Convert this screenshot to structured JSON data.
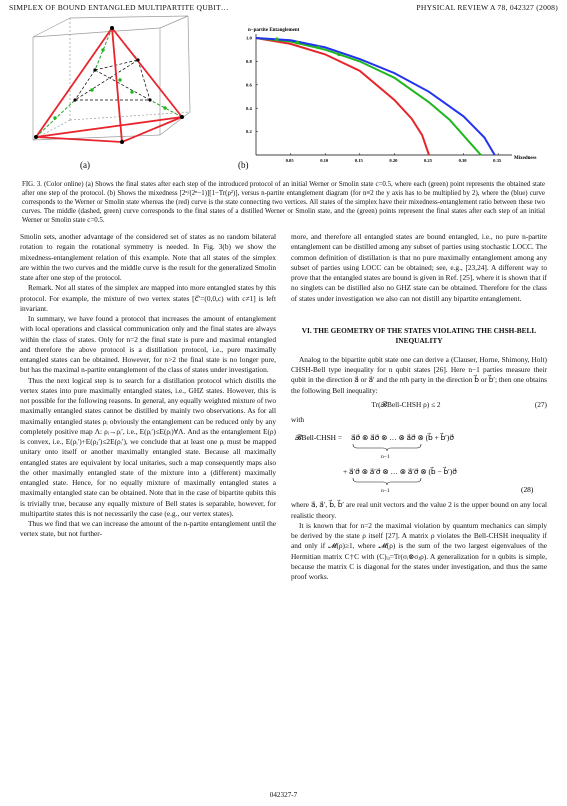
{
  "header": {
    "left": "SIMPLEX OF BOUND ENTANGLED MULTIPARTITE QUBIT…",
    "right": "PHYSICAL REVIEW A 78, 042327 (2008)"
  },
  "figure": {
    "panel_a_label": "(a)",
    "panel_b_label": "(b)",
    "ylabel": "n−partite Entanglement",
    "xlabel": "Mixedness",
    "xticks": [
      "0.05",
      "0.10",
      "0.15",
      "0.20",
      "0.25",
      "0.30",
      "0.35"
    ],
    "yticks": [
      "1.0",
      "0.8",
      "0.6",
      "0.4",
      "0.2"
    ],
    "colors": {
      "red": "#e8242c",
      "green": "#1fb61f",
      "blue": "#2233ee",
      "black": "#000000"
    }
  },
  "chart_data": {
    "type": "line",
    "xlabel": "Mixedness",
    "ylabel": "n−partite Entanglement",
    "xlim": [
      0,
      0.37
    ],
    "ylim": [
      0,
      1.0
    ],
    "series": [
      {
        "color": "red",
        "x": [
          0,
          0.05,
          0.1,
          0.15,
          0.2,
          0.225,
          0.24,
          0.25
        ],
        "y": [
          1.0,
          0.95,
          0.86,
          0.72,
          0.47,
          0.31,
          0.17,
          0.0
        ]
      },
      {
        "color": "green",
        "x": [
          0,
          0.05,
          0.1,
          0.15,
          0.2,
          0.25,
          0.28,
          0.31,
          0.325
        ],
        "y": [
          1.0,
          0.97,
          0.9,
          0.8,
          0.66,
          0.45,
          0.3,
          0.1,
          0.0
        ]
      },
      {
        "color": "blue",
        "x": [
          0,
          0.05,
          0.1,
          0.15,
          0.2,
          0.25,
          0.3,
          0.33,
          0.345
        ],
        "y": [
          1.0,
          0.98,
          0.92,
          0.82,
          0.7,
          0.54,
          0.33,
          0.15,
          0.0
        ]
      }
    ],
    "green_points": {
      "x": [
        0.03,
        0.06,
        0.09,
        0.12
      ],
      "y": [
        0.99,
        0.96,
        0.92,
        0.86
      ]
    }
  },
  "caption": {
    "text": "FIG. 3. (Color online) (a) Shows the final states after each step of the introduced protocol of an initial Werner or Smolin state c=0.5, where each (green) point represents the obtained state after one step of the protocol. (b) Shows the mixedness [2ⁿ/(2ⁿ−1)][1−Tr(ρ²)], versus n-partite entanglement diagram (for n≡2 the y axis has to be multiplied by 2), where the (blue) curve corresponds to the Werner or Smolin state whereas the (red) curve is the state connecting two vertices. All states of the simplex have their mixedness-entanglement ratio between these two curves. The middle (dashed, green) curve corresponds to the final states of a distilled Werner or Smolin state, and the (green) points represent the final states after each step of an initial Werner or Smolin state c=0.5."
  },
  "left_column": {
    "p1": "Smolin sets, another advantage of the considered set of states as no random bilateral rotation to regain the rotational symmetry is needed. In Fig. 3(b) we show the mixedness-entanglement relation of this example. Note that all states of the simplex are within the two curves and the middle curve is the result for the generalized Smolin state after one step of the protocol.",
    "p2": "Remark. Not all states of the simplex are mapped into more entangled states by this protocol. For example, the mixture of two vertex states [c⃗′=(0,0,c) with c≠1] is left invariant.",
    "p3": "In summary, we have found a protocol that increases the amount of entanglement with local operations and classical communication only and the final states are always within the class of states. Only for n=2 the final state is pure and maximal entangled and therefore the above protocol is a distillation protocol, i.e., pure maximally entangled states can be obtained. However, for n>2 the final state is no longer pure, but has the maximal n-partite entanglement of the class of states under investigation.",
    "p4": "Thus the next logical step is to search for a distillation protocol which distills the vertex states into pure maximally entangled states, i.e., GHZ states. However, this is not possible for the following reasons. In general, any equally weighted mixture of two maximally entangled states cannot be distilled by mainly two observations. As for all maximally entangled states ρᵢ obviously the entanglement can be reduced only by any completely positive map Λ: ρᵢ→ρᵢ′, i.e., E(ρᵢ′)≤E(ρᵢ)∀Λ. And as the entanglement E(ρ) is convex, i.e., E(ρᵢ′)+E(ρⱼ′)≤2E(ρᵢ′), we conclude that at least one ρᵢ must be mapped unitary onto itself or another maximally entangled state. Because all maximally entangled states are equivalent by local unitaries, such a map consequently maps also the other maximally entangled state of the mixture into a (different) maximally entangled state. Hence, for no equally mixture of maximally entangled states a maximally entangled state can be obtained. Note that in the case of bipartite qubits this is trivially true, because any equally mixture of Bell states is separable, however, for multipartite states this is not necessarily the case (e.g., our vertex states).",
    "p5": "Thus we find that we can increase the amount of the n-partite entanglement until the vertex state, but not further-"
  },
  "right_column": {
    "p1": "more, and therefore all entangled states are bound entangled, i.e., no pure n-partite entanglement can be distilled among any subset of parties using stochastic LOCC. The common definition of distillation is that no pure maximally entanglement among any subset of parties using LOCC can be obtained; see, e.g., [23,24]. A different way to prove that the entangled states are bound is given in Ref. [25], where it is shown that if no singlets can be distilled also no GHZ state can be obtained. Therefore for the class of states under investigation we also can not distill any bipartite entanglement.",
    "section_title": "VI. THE GEOMETRY OF THE STATES VIOLATING THE CHSH-BELL INEQUALITY",
    "p2": "Analog to the bipartite qubit state one can derive a (Clauser, Horne, Shimony, Holt) CHSH-Bell type inequality for n qubit states [26]. Here n−1 parties measure their qubit in the direction a⃗ or a⃗′ and the nth party in the direction b⃗ or b⃗′; then one obtains the following Bell inequality:",
    "eq27": "Tr(𝓑Bell-CHSH ρ) ≤ 2",
    "eq27_num": "(27)",
    "with": "with",
    "eq28_num": "(28)",
    "bell_lhs": "𝓑Bell-CHSH =",
    "bell_row1": "a⃗σ⃗ ⊗ a⃗σ⃗ ⊗ … ⊗ a⃗σ⃗  ⊗ (b⃗ + b⃗′)σ⃗",
    "bell_row2": "+ a⃗′σ⃗ ⊗ a⃗′σ⃗ ⊗ … ⊗ a⃗′σ⃗  ⊗ (b⃗ − b⃗′)σ⃗",
    "brace_label": "n−1",
    "p3": "where a⃗, a⃗′, b⃗, b⃗′ are real unit vectors and the value 2 is the upper bound on any local realistic theory.",
    "p4": "It is known that for n=2 the maximal violation by quantum mechanics can simply be derived by the state ρ itself [27]. A matrix ρ violates the Bell-CHSH inequality if and only if 𝓜(ρ)≥1, where 𝓜(ρ) is the sum of the two largest eigenvalues of the Hermitian matrix C†C with (C)ᵢⱼ=Tr(σᵢ⊗σⱼρ). A generalization for n qubits is simple, because the matrix C is diagonal for the states under investigation, and thus the same proof works."
  },
  "footer": {
    "page": "042327-7"
  }
}
